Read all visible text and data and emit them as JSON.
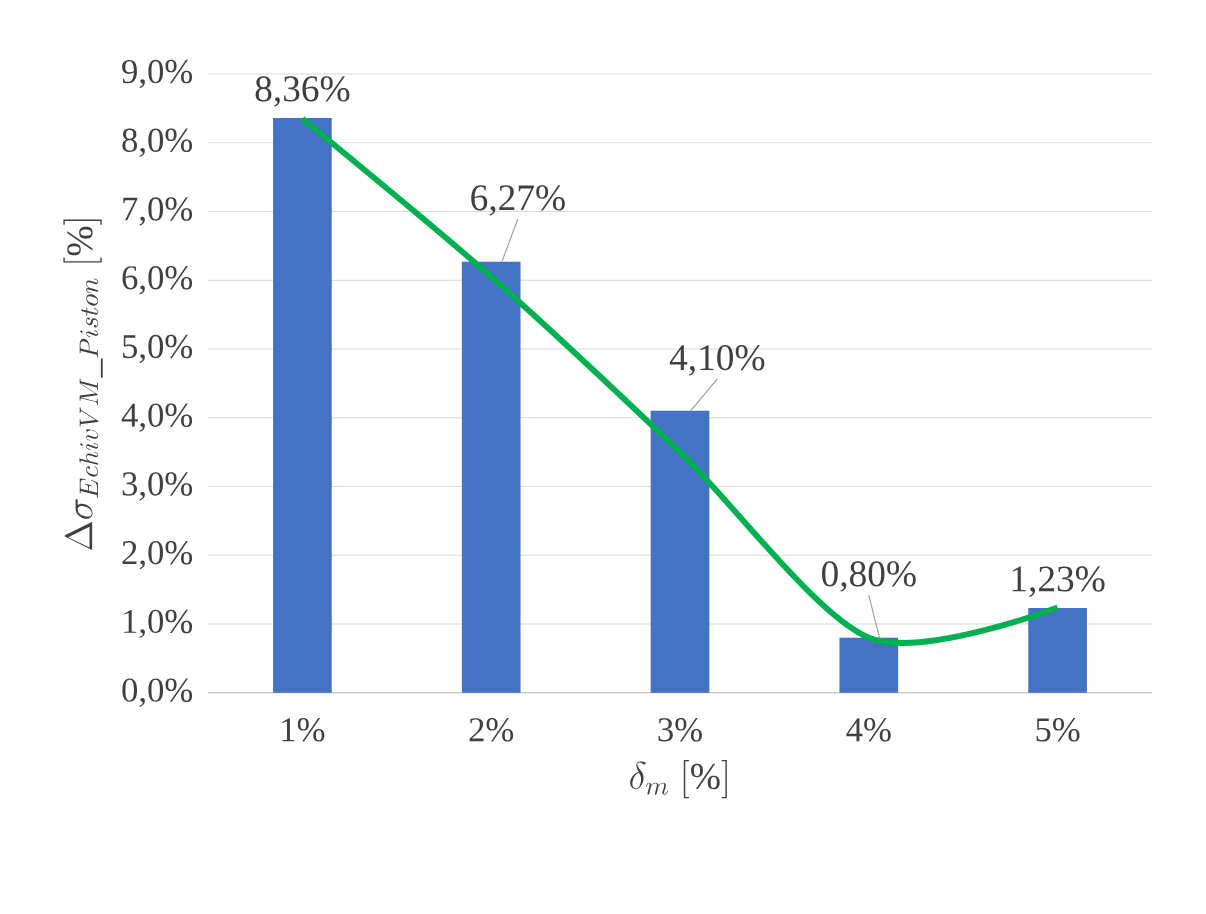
{
  "chart_data": {
    "type": "bar",
    "categories": [
      "1%",
      "2%",
      "3%",
      "4%",
      "5%"
    ],
    "xlabel": "\\delta_{m}\\ [\\%]",
    "ylabel": "\\Delta\\sigma_{EchivVM\\_Piston}\\ [\\%]",
    "series": [
      {
        "color": "#4472c4",
        "values": [
          8.36,
          6.27,
          4.1,
          0.8,
          1.23
        ],
        "value_labels": [
          "8,36%",
          "6,27%",
          "4,10%",
          "0,80%",
          "1,23%"
        ]
      },
      {
        "type": "line",
        "color": "#00b050",
        "values": [
          8.35,
          6.05,
          3.5,
          0.8,
          1.24
        ],
        "marker": "none"
      }
    ],
    "ylim": [
      0,
      9
    ],
    "yticks": [
      {
        "value": 0,
        "label": "0,0%"
      },
      {
        "value": 1,
        "label": "1,0%"
      },
      {
        "value": 2,
        "label": "2,0%"
      },
      {
        "value": 3,
        "label": "3,0%"
      },
      {
        "value": 4,
        "label": "4,0%"
      },
      {
        "value": 5,
        "label": "5,0%"
      },
      {
        "value": 6,
        "label": "6,0%"
      },
      {
        "value": 7,
        "label": "7,0%"
      },
      {
        "value": 8,
        "label": "8,0%"
      },
      {
        "value": 9,
        "label": "9,0%"
      }
    ],
    "grid": "y"
  }
}
